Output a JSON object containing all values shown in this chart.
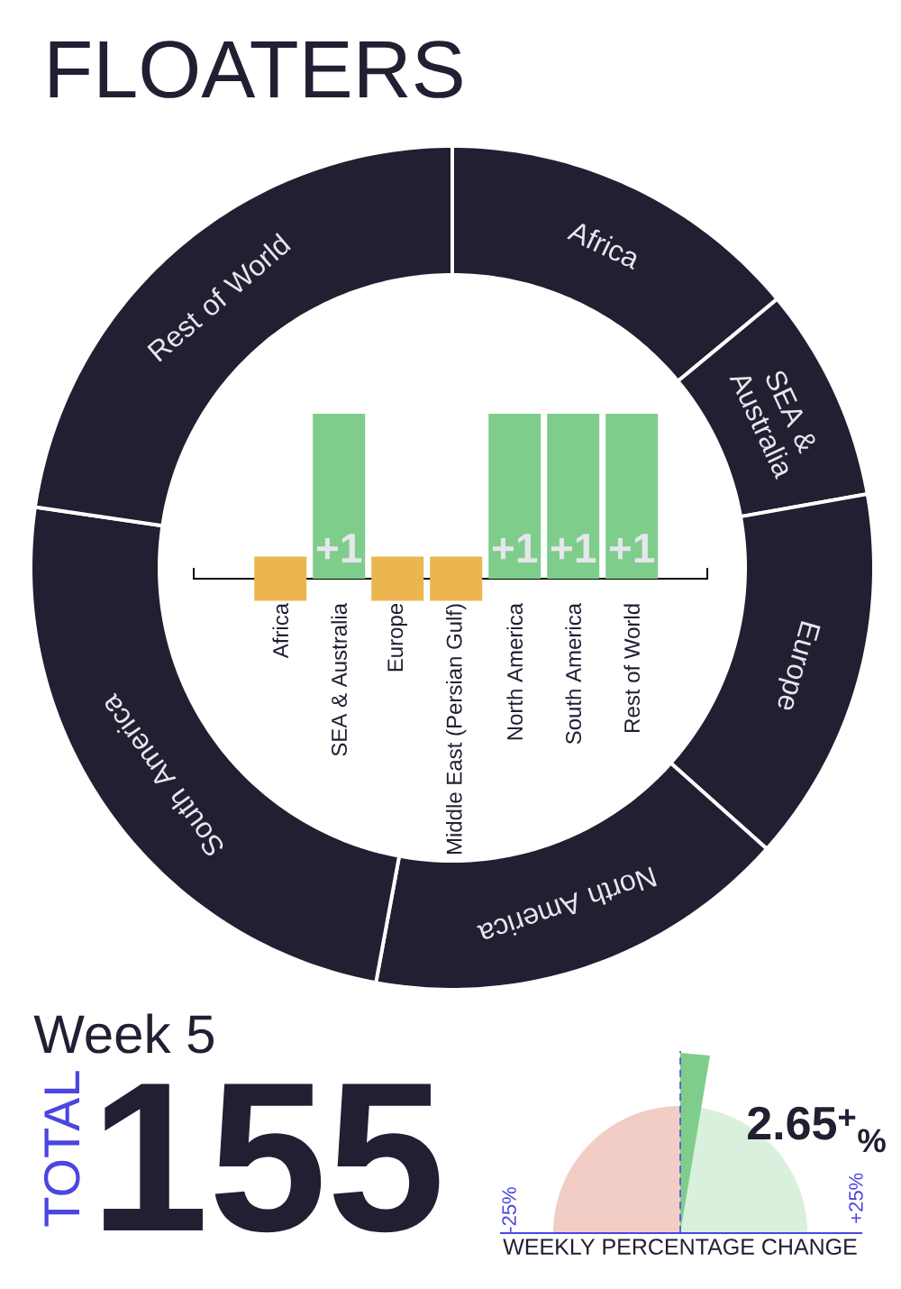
{
  "chart_data": [
    {
      "type": "donut",
      "title": "FLOATERS",
      "categories": [
        "Africa",
        "SEA & Australia",
        "Europe",
        "North America",
        "South America",
        "Rest of World"
      ],
      "values": [
        14.0,
        8.2,
        14.4,
        16.3,
        24.4,
        22.7
      ],
      "colors": [
        "#221f33",
        "#221f33",
        "#221f33",
        "#221f33",
        "#221f33",
        "#221f33"
      ]
    },
    {
      "type": "bar",
      "categories": [
        "Africa",
        "SEA & Australia",
        "Europe",
        "Middle East (Persian Gulf)",
        "North America",
        "South America",
        "Rest of World"
      ],
      "series": [
        {
          "type": "bar",
          "color": "#7fcd8a",
          "values": [
            null,
            1,
            null,
            null,
            1,
            1,
            1
          ],
          "value_labels": [
            null,
            "+1",
            null,
            null,
            "+1",
            "+1",
            "+1"
          ]
        },
        {
          "type": "bar",
          "color": "#ebb54f",
          "values": [
            0,
            null,
            0,
            0,
            null,
            null,
            null
          ]
        }
      ]
    },
    {
      "type": "other",
      "title": "Week 5",
      "annotations": [
        "TOTAL",
        "155"
      ]
    },
    {
      "type": "other",
      "xlabel": "WEEKLY PERCENTAGE CHANGE",
      "annotations": [
        "-25%",
        "+25%",
        "2.65$^{+}$$_{%}$"
      ]
    }
  ]
}
